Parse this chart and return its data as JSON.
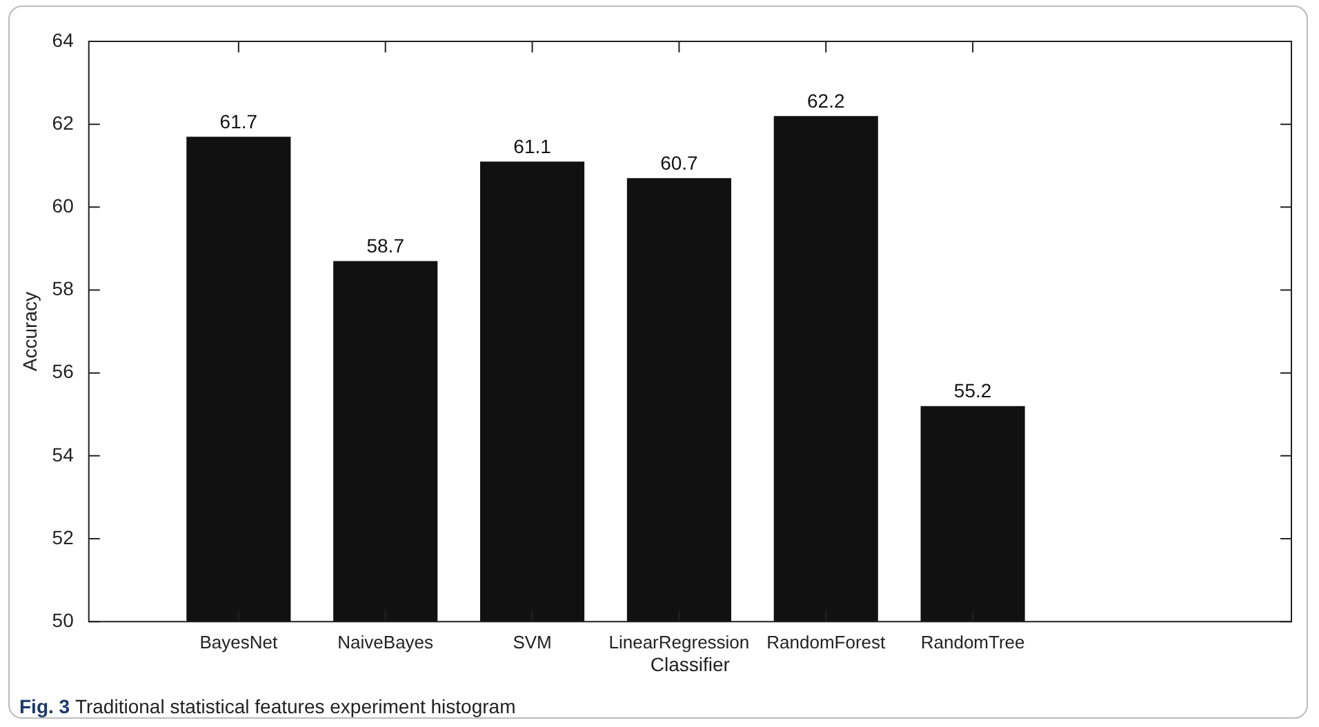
{
  "chart_data": {
    "type": "bar",
    "xlabel": "Classifier",
    "ylabel": "Accuracy",
    "categories": [
      "BayesNet",
      "NaiveBayes",
      "SVM",
      "LinearRegression",
      "RandomForest",
      "RandomTree"
    ],
    "values": [
      61.7,
      58.7,
      61.1,
      60.7,
      62.2,
      55.2
    ],
    "color": "#111111",
    "ylim": [
      50,
      64
    ],
    "yticks": [
      50,
      52,
      54,
      56,
      58,
      60,
      62,
      64
    ],
    "grid": false,
    "data_labels": true,
    "annotations": [
      "Fig. 3",
      "Traditional statistical features experiment histogram"
    ]
  }
}
